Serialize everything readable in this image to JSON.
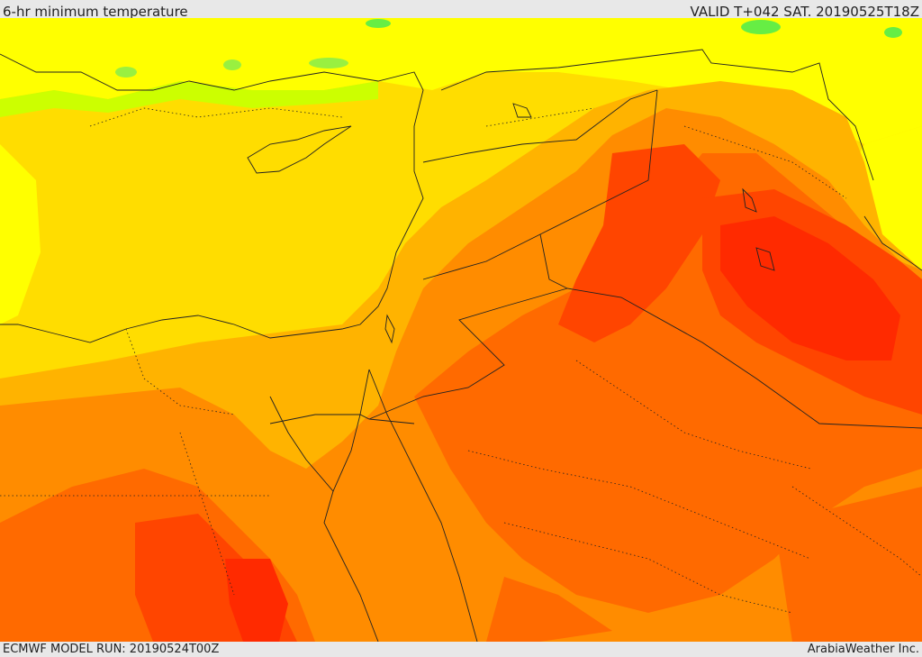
{
  "header": {
    "title": "6-hr minimum temperature",
    "valid": "VALID T+042 SAT. 20190525T18Z"
  },
  "footer": {
    "model_run": "ECMWF MODEL RUN: 20190524T00Z",
    "credit": "ArabiaWeather Inc."
  },
  "map": {
    "variable": "6-hr minimum temperature",
    "palette": {
      "green": "#66ee44",
      "yellow_green": "#ccff00",
      "yellow": "#ffff00",
      "gold": "#ffdd00",
      "amber": "#ffb300",
      "orange": "#ff8c00",
      "dark_orange": "#ff6a00",
      "red_orange": "#ff4500",
      "red": "#ff2a00"
    },
    "boundaries": {
      "coastline_color": "#222222",
      "border_color": "#222222"
    }
  }
}
